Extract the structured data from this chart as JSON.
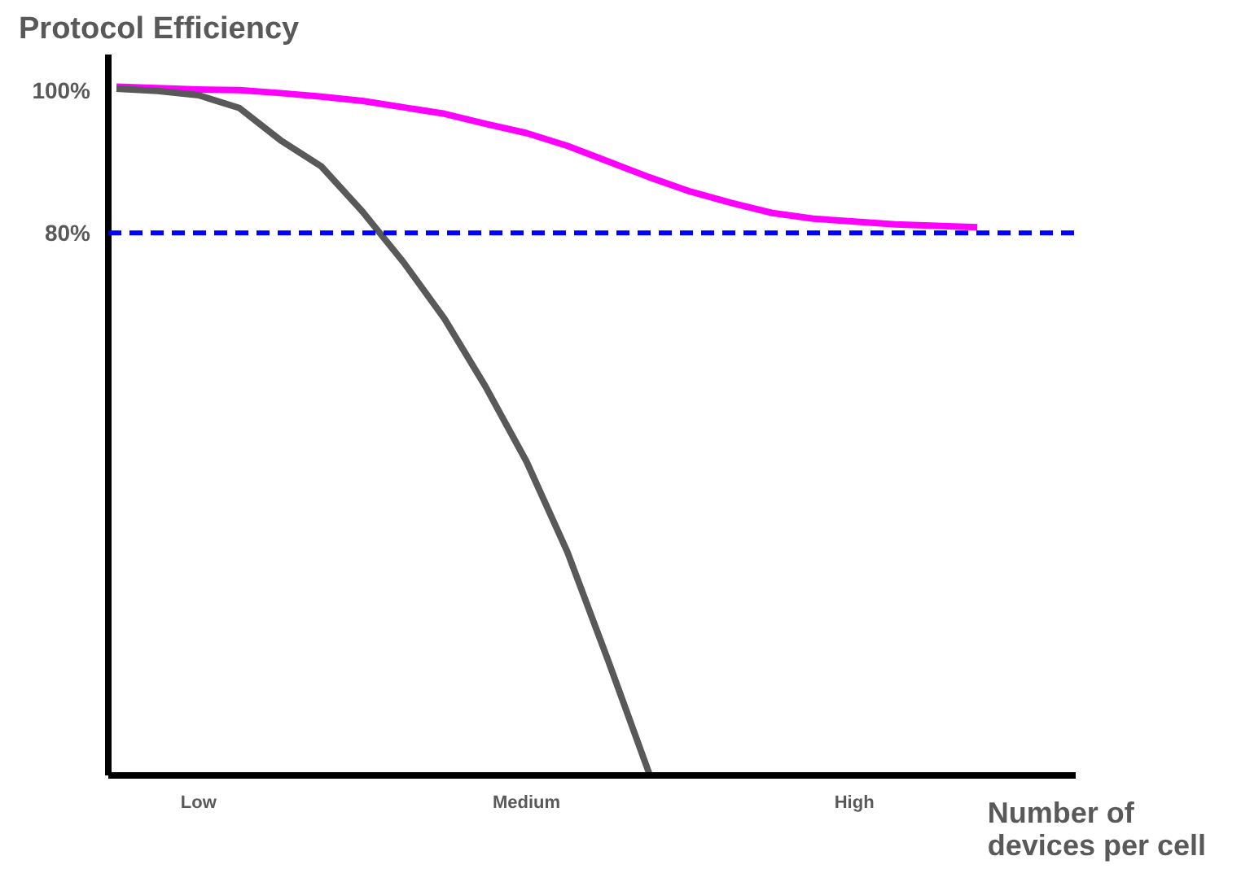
{
  "chart_data": {
    "type": "line",
    "ylabel": "Protocol Efficiency",
    "xlabel": "Number of devices per cell",
    "categories": [
      null,
      null,
      "Low",
      null,
      null,
      null,
      null,
      null,
      null,
      null,
      "Medium",
      null,
      null,
      null,
      null,
      null,
      null,
      null,
      "High",
      null,
      null,
      null,
      null,
      null
    ],
    "ylim": [
      4,
      105
    ],
    "yticks": [
      {
        "value": 80,
        "label": "80%"
      },
      {
        "value": 100,
        "label": "100%"
      }
    ],
    "series": [
      {
        "color": "#ff00ff",
        "values": [
          100.5,
          100.3,
          100.1,
          100,
          99.6,
          99.1,
          98.5,
          97.6,
          96.7,
          95.3,
          94,
          92.2,
          90,
          87.8,
          85.8,
          84.2,
          82.8,
          82,
          81.6,
          81.2,
          81,
          80.8,
          null,
          null
        ]
      },
      {
        "color": "#595959",
        "values": [
          100.2,
          99.9,
          99.3,
          97.5,
          93,
          89.3,
          83,
          75.9,
          68,
          58.5,
          48,
          35.3,
          20,
          4.2,
          null,
          null,
          null,
          null,
          null,
          null,
          null,
          null,
          null,
          null
        ]
      }
    ],
    "ref_lines": [
      {
        "axis": "y",
        "value": 80,
        "color": "#0000ff",
        "line_style": "dashed"
      }
    ],
    "grid": false,
    "marker": "none",
    "line_style": "solid"
  }
}
